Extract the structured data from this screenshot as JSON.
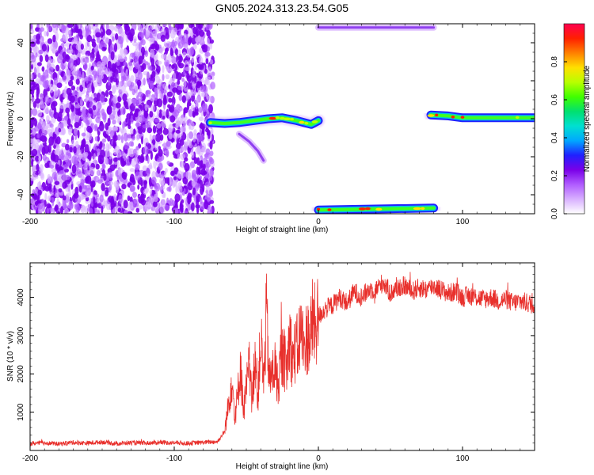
{
  "figure": {
    "title": "GN05.2024.313.23.54.G05"
  },
  "colorbar": {
    "label": "Normalized spectral amplitude",
    "ticks": [
      0.0,
      0.2,
      0.4,
      0.6,
      0.8
    ],
    "tick_labels": [
      "0.0",
      "0.2",
      "0.4",
      "0.6",
      "0.8"
    ],
    "colors": [
      "#ffffff",
      "#d8b0ff",
      "#b05cff",
      "#7a00e8",
      "#2020ff",
      "#00a8ff",
      "#00e0d0",
      "#00e070",
      "#40ff00",
      "#b8ff00",
      "#ffe000",
      "#ff8000",
      "#ff2000",
      "#ff0050"
    ]
  },
  "chart_data": [
    {
      "type": "heatmap",
      "title": "",
      "xlabel": "Height of straight line (km)",
      "ylabel": "Frequency (Hz)",
      "xlim": [
        -200,
        150
      ],
      "ylim": [
        -50,
        50
      ],
      "xticks": [
        -200,
        -100,
        0,
        100
      ],
      "xtick_labels": [
        "-200",
        "-100",
        "0",
        "100"
      ],
      "yticks": [
        -40,
        -20,
        0,
        20,
        40
      ],
      "ytick_labels": [
        "-40",
        "-20",
        "0",
        "20",
        "40"
      ],
      "noise_region": {
        "x": [
          -200,
          -73
        ],
        "y": [
          -50,
          50
        ],
        "amplitude": 0.1
      },
      "tracks": [
        {
          "x": [
            -75,
            -65,
            -55,
            -45,
            -35,
            -25,
            -15,
            -5,
            0
          ],
          "y": [
            -2,
            -2.5,
            -2,
            -1,
            0,
            0.5,
            -1,
            -3,
            -1
          ],
          "amplitude": 0.55
        },
        {
          "x": [
            -55,
            -48,
            -42,
            -38
          ],
          "y": [
            -8,
            -12,
            -17,
            -22
          ],
          "amplitude": 0.1
        },
        {
          "x": [
            0,
            80
          ],
          "y": [
            -48,
            -47
          ],
          "amplitude": 0.5
        },
        {
          "x": [
            0,
            80
          ],
          "y": [
            48,
            48
          ],
          "amplitude": 0.15
        },
        {
          "x": [
            78,
            90,
            100,
            110,
            130,
            150
          ],
          "y": [
            2,
            1.5,
            0.5,
            0.5,
            0.5,
            0.5
          ],
          "amplitude": 0.6
        }
      ]
    },
    {
      "type": "line",
      "title": "",
      "xlabel": "Height of straight line (km)",
      "ylabel": "SNR (10 * v/v)",
      "xlim": [
        -200,
        150
      ],
      "ylim": [
        0,
        4900
      ],
      "xticks": [
        -200,
        -100,
        0,
        100
      ],
      "xtick_labels": [
        "-200",
        "-100",
        "0",
        "100"
      ],
      "yticks": [
        1000,
        2000,
        3000,
        4000
      ],
      "ytick_labels": [
        "1000",
        "2000",
        "3000",
        "4000"
      ],
      "color": "#e8302c",
      "x": [
        -200,
        -190,
        -180,
        -170,
        -160,
        -150,
        -140,
        -130,
        -120,
        -110,
        -100,
        -90,
        -80,
        -75,
        -70,
        -65,
        -62,
        -60,
        -58,
        -56,
        -54,
        -52,
        -50,
        -48,
        -46,
        -44,
        -42,
        -40,
        -38,
        -36,
        -34,
        -32,
        -30,
        -28,
        -26,
        -24,
        -22,
        -20,
        -18,
        -16,
        -14,
        -12,
        -10,
        -8,
        -6,
        -4,
        -2,
        0,
        5,
        10,
        15,
        20,
        25,
        30,
        35,
        40,
        45,
        50,
        55,
        60,
        65,
        70,
        75,
        80,
        85,
        90,
        95,
        100,
        105,
        110,
        115,
        120,
        125,
        130,
        135,
        140,
        145,
        150
      ],
      "y": [
        180,
        200,
        170,
        210,
        190,
        220,
        180,
        200,
        190,
        210,
        200,
        190,
        210,
        220,
        230,
        500,
        1300,
        1900,
        900,
        1400,
        2300,
        1000,
        1600,
        2200,
        1200,
        2600,
        1400,
        3000,
        1700,
        3600,
        1800,
        2000,
        2200,
        1600,
        2500,
        2400,
        2100,
        3000,
        2400,
        2600,
        2700,
        3200,
        2600,
        3000,
        2900,
        3400,
        3200,
        3500,
        3700,
        3800,
        4000,
        3850,
        4150,
        4000,
        4200,
        4200,
        4400,
        4100,
        4250,
        4300,
        4150,
        4250,
        4200,
        4300,
        4200,
        4100,
        4150,
        4000,
        4050,
        4000,
        3950,
        4000,
        3900,
        3950,
        3850,
        3900,
        3850,
        3800
      ]
    }
  ]
}
